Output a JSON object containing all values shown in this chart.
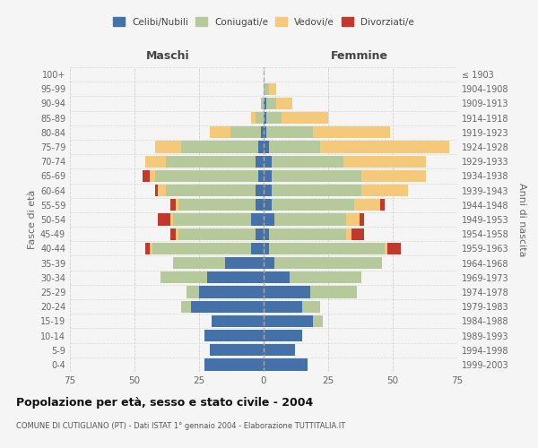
{
  "age_groups": [
    "0-4",
    "5-9",
    "10-14",
    "15-19",
    "20-24",
    "25-29",
    "30-34",
    "35-39",
    "40-44",
    "45-49",
    "50-54",
    "55-59",
    "60-64",
    "65-69",
    "70-74",
    "75-79",
    "80-84",
    "85-89",
    "90-94",
    "95-99",
    "100+"
  ],
  "birth_years": [
    "1999-2003",
    "1994-1998",
    "1989-1993",
    "1984-1988",
    "1979-1983",
    "1974-1978",
    "1969-1973",
    "1964-1968",
    "1959-1963",
    "1954-1958",
    "1949-1953",
    "1944-1948",
    "1939-1943",
    "1934-1938",
    "1929-1933",
    "1924-1928",
    "1919-1923",
    "1914-1918",
    "1909-1913",
    "1904-1908",
    "≤ 1903"
  ],
  "male": {
    "celibe": [
      23,
      21,
      23,
      20,
      28,
      25,
      22,
      15,
      5,
      3,
      5,
      3,
      3,
      2,
      3,
      2,
      1,
      0,
      0,
      0,
      0
    ],
    "coniugato": [
      0,
      0,
      0,
      0,
      4,
      5,
      18,
      20,
      38,
      30,
      30,
      30,
      35,
      40,
      35,
      30,
      12,
      3,
      1,
      0,
      0
    ],
    "vedovo": [
      0,
      0,
      0,
      0,
      0,
      0,
      0,
      0,
      1,
      1,
      1,
      1,
      3,
      2,
      8,
      10,
      8,
      2,
      0,
      0,
      0
    ],
    "divorziato": [
      0,
      0,
      0,
      0,
      0,
      0,
      0,
      0,
      2,
      2,
      5,
      2,
      1,
      3,
      0,
      0,
      0,
      0,
      0,
      0,
      0
    ]
  },
  "female": {
    "nubile": [
      17,
      12,
      15,
      19,
      15,
      18,
      10,
      4,
      2,
      2,
      4,
      3,
      3,
      3,
      3,
      2,
      1,
      1,
      1,
      0,
      0
    ],
    "coniugata": [
      0,
      0,
      0,
      4,
      7,
      18,
      28,
      42,
      45,
      30,
      28,
      32,
      35,
      35,
      28,
      20,
      18,
      6,
      4,
      2,
      0
    ],
    "vedova": [
      0,
      0,
      0,
      0,
      0,
      0,
      0,
      0,
      1,
      2,
      5,
      10,
      18,
      25,
      32,
      50,
      30,
      18,
      6,
      3,
      0
    ],
    "divorziata": [
      0,
      0,
      0,
      0,
      0,
      0,
      0,
      0,
      5,
      5,
      2,
      2,
      0,
      0,
      0,
      0,
      0,
      0,
      0,
      0,
      0
    ]
  },
  "colors": {
    "celibe": "#4472a8",
    "coniugato": "#b5c99a",
    "vedovo": "#f5c97a",
    "divorziato": "#c0392b"
  },
  "xlim": 75,
  "title": "Popolazione per età, sesso e stato civile - 2004",
  "subtitle": "COMUNE DI CUTIGLIANO (PT) - Dati ISTAT 1° gennaio 2004 - Elaborazione TUTTITALIA.IT",
  "ylabel_left": "Fasce di età",
  "ylabel_right": "Anni di nascita",
  "xlabel_left": "Maschi",
  "xlabel_right": "Femmine",
  "background_color": "#f5f5f5",
  "grid_color": "#cccccc"
}
